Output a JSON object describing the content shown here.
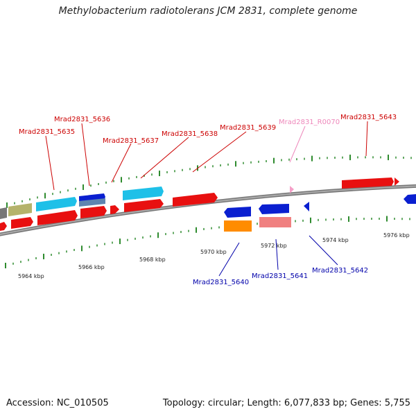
{
  "title": "Methylobacterium radiotolerans JCM 2831, complete genome",
  "footer": {
    "accession": "Accession: NC_010505",
    "summary": "Topology: circular; Length: 6,077,833 bp; Genes: 5,755"
  },
  "colors": {
    "backbone": "#888888",
    "tick": "#2e8b2e",
    "label_red": "#cc0000",
    "label_blue": "#0000aa",
    "label_pink": "#ee88bb"
  },
  "kbp_labels": [
    "5964 kbp",
    "5966 kbp",
    "5968 kbp",
    "5970 kbp",
    "5972 kbp",
    "5974 kbp",
    "5976 kbp"
  ],
  "gene_labels": [
    {
      "text": "Mrad2831_5635",
      "color": "red"
    },
    {
      "text": "Mrad2831_5636",
      "color": "red"
    },
    {
      "text": "Mrad2831_5637",
      "color": "red"
    },
    {
      "text": "Mrad2831_5638",
      "color": "red"
    },
    {
      "text": "Mrad2831_5639",
      "color": "red"
    },
    {
      "text": "Mrad2831_R0070",
      "color": "pink"
    },
    {
      "text": "Mrad2831_5643",
      "color": "red"
    },
    {
      "text": "Mrad2831_5640",
      "color": "blue"
    },
    {
      "text": "Mrad2831_5641",
      "color": "blue"
    },
    {
      "text": "Mrad2831_5642",
      "color": "blue"
    }
  ]
}
